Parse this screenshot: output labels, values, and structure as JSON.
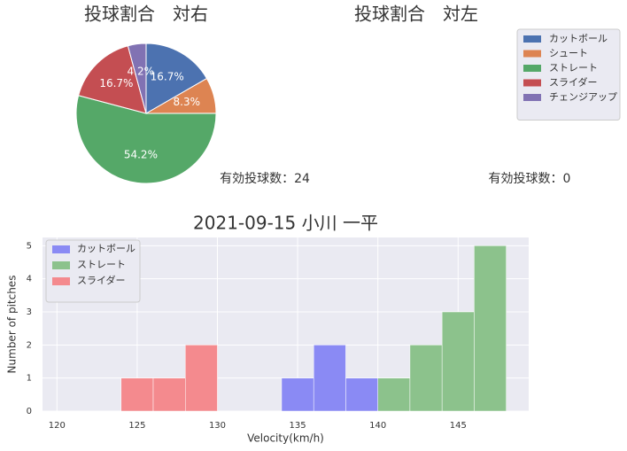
{
  "chart_data": [
    {
      "type": "pie",
      "title": "投球割合　対右",
      "annotation": "有効投球数：24",
      "values": [
        16.7,
        8.3,
        54.2,
        16.7,
        4.2
      ],
      "value_labels": [
        "16.7%",
        "8.3%",
        "54.2%",
        "16.7%",
        "4.2%"
      ],
      "colors": [
        "#4c72b0",
        "#dd8452",
        "#55a868",
        "#c44e52",
        "#8172b3"
      ]
    },
    {
      "type": "pie",
      "title": "投球割合　対左",
      "annotation": "有効投球数：0",
      "legend": {
        "labels": [
          "カットボール",
          "シュート",
          "ストレート",
          "スライダー",
          "チェンジアップ"
        ],
        "colors": [
          "#4c72b0",
          "#dd8452",
          "#55a868",
          "#c44e52",
          "#8172b3"
        ]
      }
    },
    {
      "type": "histogram",
      "title": "2021-09-15 小川 一平",
      "xlabel": "Velocity(km/h)",
      "ylabel": "Number of pitches",
      "xlim": [
        119.1,
        149.4
      ],
      "xticks": [
        120,
        125,
        130,
        135,
        140,
        145
      ],
      "ylim": [
        0,
        5.25
      ],
      "yticks": [
        0,
        1,
        2,
        3,
        4,
        5
      ],
      "grid": true,
      "legend": "upper left",
      "series": [
        {
          "name": "カットボール",
          "color": "#8a8af4",
          "bins": [
            134,
            136,
            138,
            140
          ],
          "values": [
            1,
            2,
            1
          ]
        },
        {
          "name": "ストレート",
          "color": "#8cc28c",
          "bins": [
            140,
            142,
            144,
            146,
            148
          ],
          "values": [
            1,
            2,
            3,
            5
          ]
        },
        {
          "name": "スライダー",
          "color": "#f48a8e",
          "bins": [
            124,
            126,
            128,
            130
          ],
          "values": [
            1,
            1,
            2
          ]
        }
      ]
    }
  ]
}
